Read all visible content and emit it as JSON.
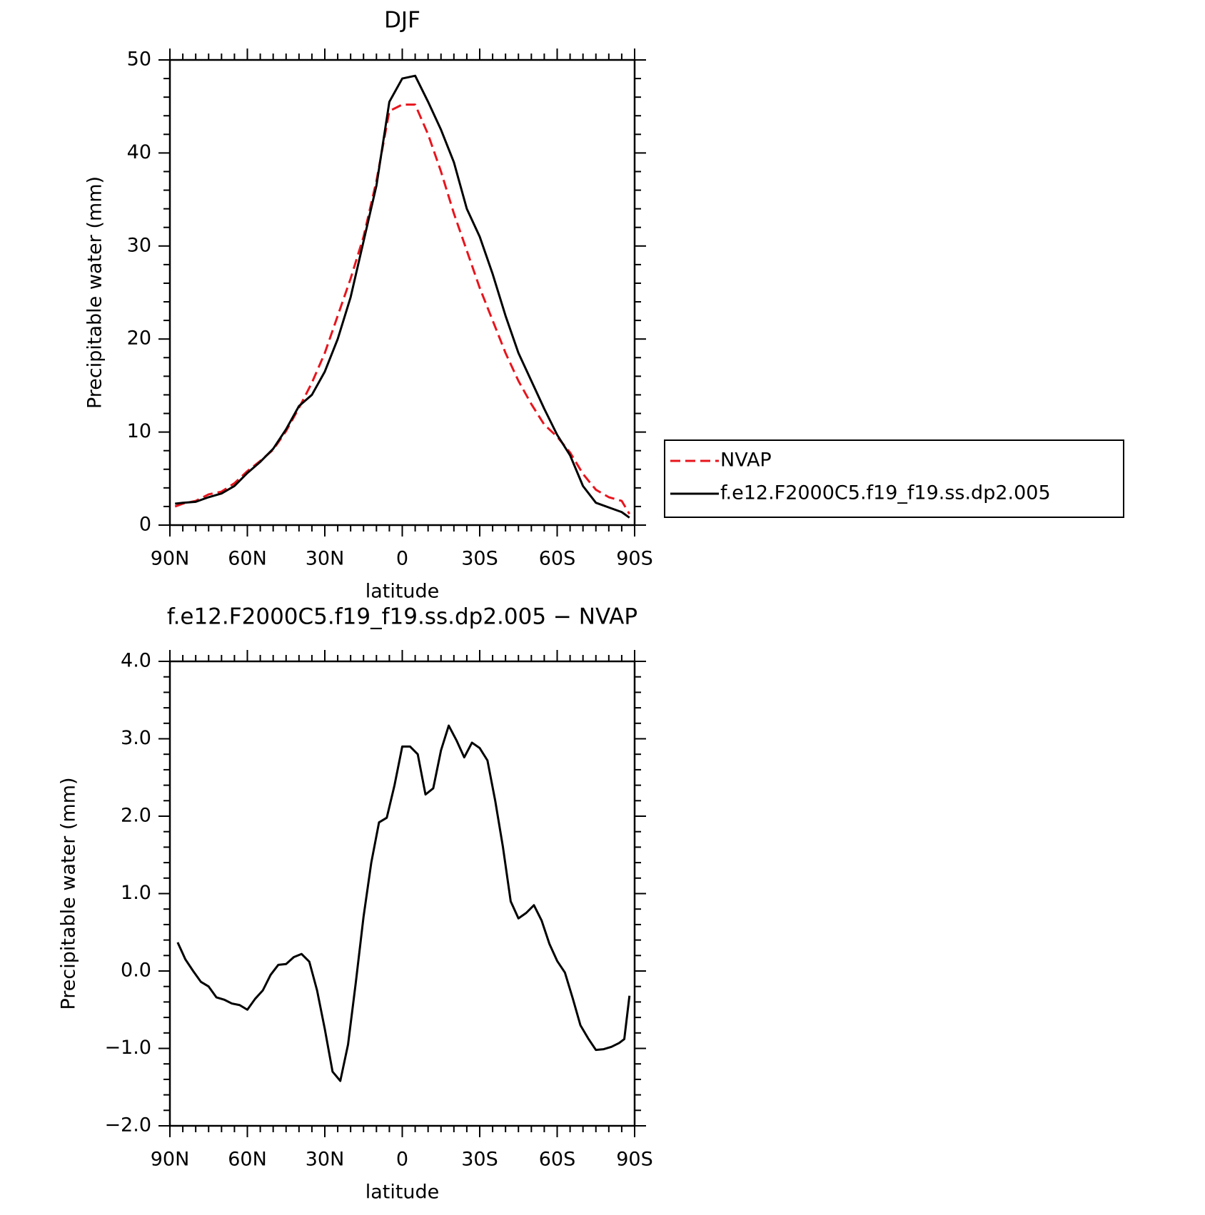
{
  "chart_data": [
    {
      "type": "line",
      "title": "DJF",
      "xlabel": "latitude",
      "ylabel": "Precipitable water (mm)",
      "x": [
        88,
        85,
        80,
        75,
        70,
        65,
        60,
        55,
        50,
        45,
        40,
        35,
        30,
        25,
        20,
        15,
        10,
        5,
        0,
        -5,
        -10,
        -15,
        -20,
        -25,
        -30,
        -35,
        -40,
        -45,
        -50,
        -55,
        -60,
        -65,
        -70,
        -75,
        -80,
        -85,
        -88
      ],
      "xlim": [
        90,
        -90
      ],
      "xticks": [
        {
          "value": 90,
          "label": "90N"
        },
        {
          "value": 60,
          "label": "60N"
        },
        {
          "value": 30,
          "label": "30N"
        },
        0,
        {
          "value": -30,
          "label": "30S"
        },
        {
          "value": -60,
          "label": "60S"
        },
        {
          "value": -90,
          "label": "90S"
        }
      ],
      "ylim": [
        0,
        50
      ],
      "yticks": [
        0,
        10,
        20,
        30,
        40,
        50
      ],
      "legend": "right",
      "series": [
        {
          "name": "NVAP",
          "color": "#e8141c",
          "dashed": true,
          "values": [
            2.0,
            2.3,
            2.6,
            3.3,
            3.6,
            4.5,
            5.8,
            6.9,
            8.1,
            10.1,
            12.6,
            15.3,
            18.5,
            22.5,
            26.5,
            31.0,
            37.0,
            44.5,
            45.2,
            45.2,
            42.0,
            38.0,
            33.5,
            29.5,
            25.5,
            22.0,
            18.5,
            15.5,
            13.0,
            10.8,
            9.5,
            7.8,
            5.5,
            3.8,
            3.0,
            2.6,
            1.2
          ]
        },
        {
          "name": "f.e12.F2000C5.f19_f19.ss.dp2.005",
          "color": "#000000",
          "dashed": false,
          "values": [
            2.3,
            2.4,
            2.5,
            3.0,
            3.4,
            4.2,
            5.6,
            6.8,
            8.2,
            10.3,
            12.8,
            14.0,
            16.5,
            20.0,
            24.5,
            30.5,
            36.5,
            45.5,
            48.0,
            48.3,
            45.5,
            42.5,
            39.0,
            34.0,
            31.0,
            27.0,
            22.5,
            18.5,
            15.5,
            12.5,
            9.7,
            7.5,
            4.2,
            2.4,
            1.9,
            1.4,
            0.8
          ]
        }
      ]
    },
    {
      "type": "line",
      "title": "f.e12.F2000C5.f19_f19.ss.dp2.005 − NVAP",
      "xlabel": "latitude",
      "ylabel": "Precipitable water (mm)",
      "x": [
        87,
        84,
        81,
        78,
        75,
        72,
        69,
        66,
        63,
        60,
        57,
        54,
        51,
        48,
        45,
        42,
        39,
        36,
        33,
        30,
        27,
        24,
        21,
        18,
        15,
        12,
        9,
        6,
        3,
        0,
        -3,
        -6,
        -9,
        -12,
        -15,
        -18,
        -21,
        -24,
        -27,
        -30,
        -33,
        -36,
        -39,
        -42,
        -45,
        -48,
        -51,
        -54,
        -57,
        -60,
        -63,
        -66,
        -69,
        -72,
        -75,
        -78,
        -81,
        -84,
        -86,
        -88
      ],
      "xlim": [
        90,
        -90
      ],
      "xticks": [
        {
          "value": 90,
          "label": "90N"
        },
        {
          "value": 60,
          "label": "60N"
        },
        {
          "value": 30,
          "label": "30N"
        },
        0,
        {
          "value": -30,
          "label": "30S"
        },
        {
          "value": -60,
          "label": "60S"
        },
        {
          "value": -90,
          "label": "90S"
        }
      ],
      "ylim": [
        -2,
        4
      ],
      "yticks": [
        {
          "value": -2,
          "label": "−2.0"
        },
        {
          "value": -1,
          "label": "−1.0"
        },
        {
          "value": 0,
          "label": "0.0"
        },
        {
          "value": 1,
          "label": "1.0"
        },
        {
          "value": 2,
          "label": "2.0"
        },
        {
          "value": 3,
          "label": "3.0"
        },
        {
          "value": 4,
          "label": "4.0"
        }
      ],
      "series": [
        {
          "color": "#000000",
          "dashed": false,
          "values": [
            0.37,
            0.15,
            0.0,
            -0.14,
            -0.2,
            -0.34,
            -0.37,
            -0.42,
            -0.44,
            -0.5,
            -0.36,
            -0.25,
            -0.05,
            0.08,
            0.09,
            0.18,
            0.22,
            0.12,
            -0.25,
            -0.75,
            -1.3,
            -1.42,
            -0.95,
            -0.15,
            0.7,
            1.4,
            1.92,
            1.98,
            2.4,
            2.9,
            2.9,
            2.8,
            2.28,
            2.36,
            2.85,
            3.17,
            2.98,
            2.76,
            2.95,
            2.88,
            2.72,
            2.2,
            1.6,
            0.9,
            0.68,
            0.75,
            0.85,
            0.65,
            0.35,
            0.13,
            -0.02,
            -0.35,
            -0.7,
            -0.87,
            -1.02,
            -1.01,
            -0.98,
            -0.93,
            -0.88,
            -0.32
          ]
        }
      ]
    }
  ]
}
